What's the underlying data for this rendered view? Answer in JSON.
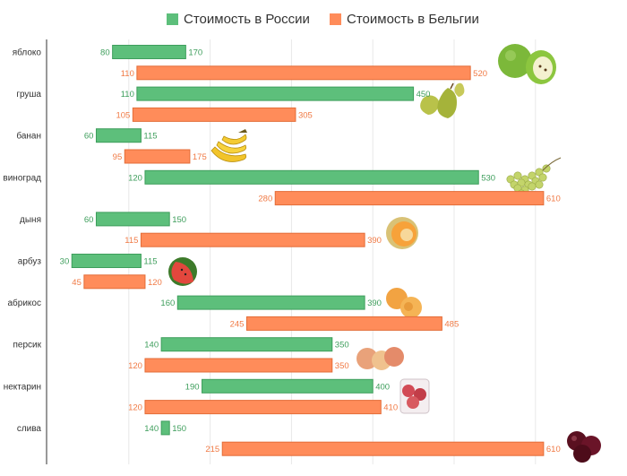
{
  "chart_data": {
    "type": "bar",
    "orientation": "horizontal-floating",
    "categories": [
      "яблоко",
      "груша",
      "банан",
      "виноград",
      "дыня",
      "арбуз",
      "абрикос",
      "персик",
      "нектарин",
      "слива"
    ],
    "series": [
      {
        "name": "Стоимость в России",
        "color": "#5dbf7b",
        "stroke": "#3e9e5c",
        "label_color": "#3e9e5c",
        "low": [
          80,
          110,
          60,
          120,
          60,
          30,
          160,
          140,
          190,
          140
        ],
        "high": [
          170,
          450,
          115,
          530,
          150,
          115,
          390,
          350,
          400,
          150
        ]
      },
      {
        "name": "Стоимость в Бельгии",
        "color": "#ff8c5a",
        "stroke": "#e36d38",
        "label_color": "#f07a45",
        "low": [
          110,
          105,
          95,
          280,
          115,
          45,
          245,
          120,
          120,
          215
        ],
        "high": [
          520,
          305,
          175,
          610,
          390,
          120,
          485,
          350,
          410,
          610
        ]
      }
    ],
    "xlim": [
      0,
      650
    ],
    "grid": true,
    "legend_position": "top-center",
    "fruit_icons": [
      "apple-icon",
      "pear-icon",
      "banana-icon",
      "grape-icon",
      "melon-icon",
      "watermelon-icon",
      "apricot-icon",
      "peach-icon",
      "nectarine-icon",
      "plum-icon"
    ]
  }
}
